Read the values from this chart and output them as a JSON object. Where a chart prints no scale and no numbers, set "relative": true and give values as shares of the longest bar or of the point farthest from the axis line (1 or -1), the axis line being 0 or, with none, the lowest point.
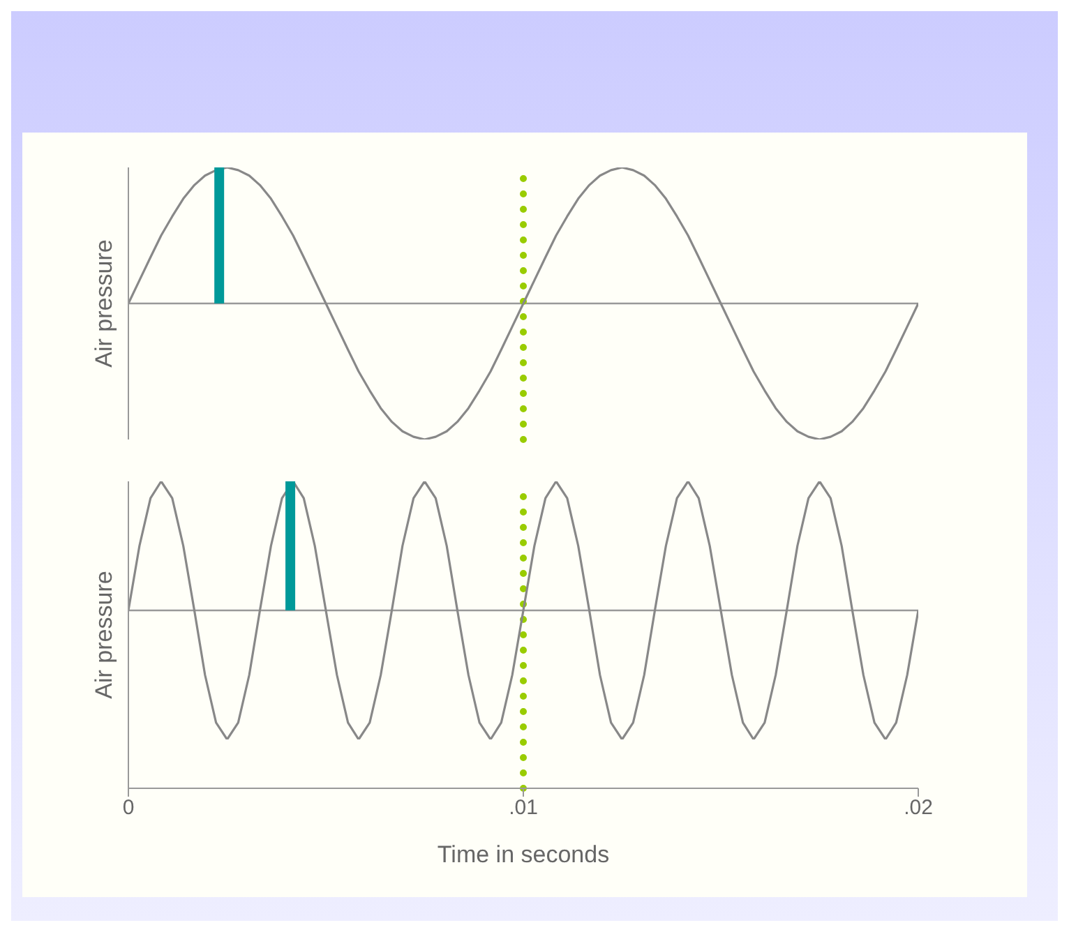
{
  "chart_data": [
    {
      "type": "line",
      "relative": true,
      "ylabel": "Air pressure",
      "tick_labels": false,
      "xlim": [
        0,
        0.02
      ],
      "x": [
        0,
        0.00028,
        0.00056,
        0.00083,
        0.00111,
        0.00139,
        0.00167,
        0.00194,
        0.00222,
        0.0025,
        0.00278,
        0.00306,
        0.00333,
        0.00361,
        0.00389,
        0.00417,
        0.00444,
        0.00472,
        0.005,
        0.00528,
        0.00556,
        0.00583,
        0.00611,
        0.00639,
        0.00667,
        0.00694,
        0.00722,
        0.0075,
        0.00778,
        0.00806,
        0.00833,
        0.00861,
        0.00889,
        0.00917,
        0.00944,
        0.00972,
        0.01,
        0.01028,
        0.01056,
        0.01083,
        0.01111,
        0.01139,
        0.01167,
        0.01194,
        0.01222,
        0.0125,
        0.01278,
        0.01306,
        0.01333,
        0.01361,
        0.01389,
        0.01417,
        0.01444,
        0.01472,
        0.015,
        0.01528,
        0.01556,
        0.01583,
        0.01611,
        0.01639,
        0.01667,
        0.01694,
        0.01722,
        0.0175,
        0.01778,
        0.01806,
        0.01833,
        0.01861,
        0.01889,
        0.01917,
        0.01944,
        0.01972,
        0.02
      ],
      "series": [
        {
          "color": "#888888",
          "values": [
            0,
            0.17,
            0.34,
            0.5,
            0.64,
            0.77,
            0.87,
            0.94,
            0.98,
            1,
            0.98,
            0.94,
            0.87,
            0.77,
            0.64,
            0.5,
            0.34,
            0.17,
            0,
            -0.17,
            -0.34,
            -0.5,
            -0.64,
            -0.77,
            -0.87,
            -0.94,
            -0.98,
            -1,
            -0.98,
            -0.94,
            -0.87,
            -0.77,
            -0.64,
            -0.5,
            -0.34,
            -0.17,
            0,
            0.17,
            0.34,
            0.5,
            0.64,
            0.77,
            0.87,
            0.94,
            0.98,
            1,
            0.98,
            0.94,
            0.87,
            0.77,
            0.64,
            0.5,
            0.34,
            0.17,
            0,
            -0.17,
            -0.34,
            -0.5,
            -0.64,
            -0.77,
            -0.87,
            -0.94,
            -0.98,
            -1,
            -0.98,
            -0.94,
            -0.87,
            -0.77,
            -0.64,
            -0.5,
            -0.34,
            -0.17,
            0
          ]
        },
        {
          "type": "bar",
          "color": "#009999",
          "x": [
            0.0023
          ],
          "values": [
            1
          ]
        }
      ],
      "ref_lines": [
        {
          "axis": "x",
          "value": 0.01,
          "color": "#99cc00",
          "line_style": "dotted"
        }
      ]
    },
    {
      "type": "line",
      "relative": true,
      "ylabel": "Air pressure",
      "xlabel": "Time in seconds",
      "tick_labels": "x",
      "xlim": [
        0,
        0.02
      ],
      "xticks": [
        0,
        {
          "value": 0.01,
          "label": ".01"
        },
        {
          "value": 0.02,
          "label": ".02"
        }
      ],
      "x": [
        0,
        0.00028,
        0.00056,
        0.00083,
        0.00111,
        0.00139,
        0.00167,
        0.00194,
        0.00222,
        0.0025,
        0.00278,
        0.00306,
        0.00333,
        0.00361,
        0.00389,
        0.00417,
        0.00444,
        0.00472,
        0.005,
        0.00528,
        0.00556,
        0.00583,
        0.00611,
        0.00639,
        0.00667,
        0.00694,
        0.00722,
        0.0075,
        0.00778,
        0.00806,
        0.00833,
        0.00861,
        0.00889,
        0.00917,
        0.00944,
        0.00972,
        0.01,
        0.01028,
        0.01056,
        0.01083,
        0.01111,
        0.01139,
        0.01167,
        0.01194,
        0.01222,
        0.0125,
        0.01278,
        0.01306,
        0.01333,
        0.01361,
        0.01389,
        0.01417,
        0.01444,
        0.01472,
        0.015,
        0.01528,
        0.01556,
        0.01583,
        0.01611,
        0.01639,
        0.01667,
        0.01694,
        0.01722,
        0.0175,
        0.01778,
        0.01806,
        0.01833,
        0.01861,
        0.01889,
        0.01917,
        0.01944,
        0.01972,
        0.02
      ],
      "series": [
        {
          "color": "#888888",
          "values": [
            0,
            0.5,
            0.87,
            1,
            0.87,
            0.5,
            0,
            -0.5,
            -0.87,
            -1,
            -0.87,
            -0.5,
            0,
            0.5,
            0.87,
            1,
            0.87,
            0.5,
            0,
            -0.5,
            -0.87,
            -1,
            -0.87,
            -0.5,
            0,
            0.5,
            0.87,
            1,
            0.87,
            0.5,
            0,
            -0.5,
            -0.87,
            -1,
            -0.87,
            -0.5,
            0,
            0.5,
            0.87,
            1,
            0.87,
            0.5,
            0,
            -0.5,
            -0.87,
            -1,
            -0.87,
            -0.5,
            0,
            0.5,
            0.87,
            1,
            0.87,
            0.5,
            0,
            -0.5,
            -0.87,
            -1,
            -0.87,
            -0.5,
            0,
            0.5,
            0.87,
            1,
            0.87,
            0.5,
            0,
            -0.5,
            -0.87,
            -1,
            -0.87,
            -0.5,
            0
          ]
        },
        {
          "type": "bar",
          "color": "#009999",
          "x": [
            0.0041
          ],
          "values": [
            1
          ]
        }
      ],
      "ref_lines": [
        {
          "axis": "x",
          "value": 0.01,
          "color": "#99cc00",
          "line_style": "dotted"
        }
      ]
    }
  ]
}
